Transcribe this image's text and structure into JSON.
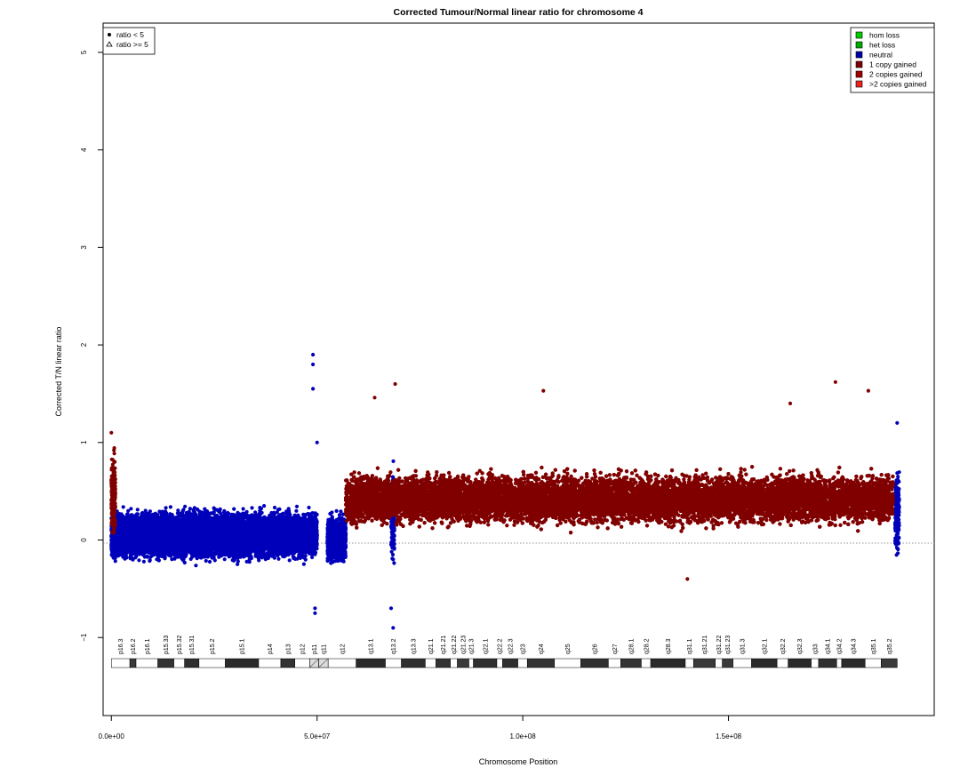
{
  "chart_data": {
    "type": "scatter",
    "title": "Corrected Tumour/Normal linear ratio for chromosome  4",
    "xlabel": "Chromosome Position",
    "ylabel": "Corrected T/N linear ratio",
    "xlim": [
      -2000000,
      200000000
    ],
    "ylim": [
      -1.8,
      5.3
    ],
    "x_ticks": [
      0,
      50000000,
      100000000,
      150000000
    ],
    "x_tick_labels": [
      "0.0e+00",
      "5.0e+07",
      "1.0e+08",
      "1.5e+08"
    ],
    "y_ticks": [
      -1,
      0,
      1,
      2,
      3,
      4,
      5
    ],
    "y_tick_labels": [
      "−1",
      "0",
      "1",
      "2",
      "3",
      "4",
      "5"
    ],
    "reference_line_y": 0,
    "shape_legend": {
      "position": "top-left",
      "entries": [
        {
          "label": "ratio < 5",
          "symbol": "filled-circle"
        },
        {
          "label": "ratio >= 5",
          "symbol": "open-triangle"
        }
      ]
    },
    "legend": {
      "position": "top-right",
      "entries": [
        {
          "label": "hom loss",
          "color": "#00cc00"
        },
        {
          "label": "het loss",
          "color": "#00aa00"
        },
        {
          "label": "neutral",
          "color": "#0000aa"
        },
        {
          "label": "1 copy gained",
          "color": "#800000"
        },
        {
          "label": "2 copies gained",
          "color": "#a00000"
        },
        {
          "label": ">2 copies gained",
          "color": "#ee2020"
        }
      ]
    },
    "series": [
      {
        "name": "neutral",
        "color": "#0000bb",
        "segments": [
          {
            "x_range": [
              0,
              50000000
            ],
            "center": 0.05,
            "spread": 0.2
          },
          {
            "x_range": [
              52500000,
              57000000
            ],
            "center": 0.02,
            "spread": 0.2
          },
          {
            "x_range": [
              68000000,
              68800000
            ],
            "center": 0.25,
            "spread": 0.4
          },
          {
            "x_range": [
              190500000,
              191500000
            ],
            "center": 0.3,
            "spread": 0.35
          }
        ],
        "notable_points": [
          [
            49000000,
            1.9
          ],
          [
            49000000,
            1.8
          ],
          [
            49000000,
            1.55
          ],
          [
            50000000,
            1.0
          ],
          [
            49500000,
            -0.7
          ],
          [
            49500000,
            -0.75
          ],
          [
            68000000,
            -0.7
          ],
          [
            68500000,
            -0.9
          ],
          [
            191000000,
            1.2
          ]
        ]
      },
      {
        "name": "1 copy gained",
        "color": "#800000",
        "segments": [
          {
            "x_range": [
              0,
              1000000
            ],
            "center": 0.45,
            "spread": 0.35
          },
          {
            "x_range": [
              57000000,
              190000000
            ],
            "center": 0.42,
            "spread": 0.22
          }
        ],
        "notable_points": [
          [
            64000000,
            1.46
          ],
          [
            69000000,
            1.6
          ],
          [
            105000000,
            1.53
          ],
          [
            165000000,
            1.4
          ],
          [
            176000000,
            1.62
          ],
          [
            184000000,
            1.53
          ],
          [
            140000000,
            -0.4
          ],
          [
            0,
            1.1
          ]
        ]
      }
    ],
    "ideogram": {
      "bands": [
        {
          "name": "p16.3",
          "start": 0,
          "end": 4500000,
          "stain": "gneg"
        },
        {
          "name": "p16.2",
          "start": 4500000,
          "end": 6000000,
          "stain": "gpos25"
        },
        {
          "name": "p16.1",
          "start": 6000000,
          "end": 11300000,
          "stain": "gneg"
        },
        {
          "name": "p15.33",
          "start": 11300000,
          "end": 15200000,
          "stain": "gpos50"
        },
        {
          "name": "p15.32",
          "start": 15200000,
          "end": 17800000,
          "stain": "gneg"
        },
        {
          "name": "p15.31",
          "start": 17800000,
          "end": 21300000,
          "stain": "gpos75"
        },
        {
          "name": "p15.2",
          "start": 21300000,
          "end": 27700000,
          "stain": "gneg"
        },
        {
          "name": "p15.1",
          "start": 27700000,
          "end": 35800000,
          "stain": "gpos100"
        },
        {
          "name": "p14",
          "start": 35800000,
          "end": 41200000,
          "stain": "gneg"
        },
        {
          "name": "p13",
          "start": 41200000,
          "end": 44600000,
          "stain": "gpos50"
        },
        {
          "name": "p12",
          "start": 44600000,
          "end": 48200000,
          "stain": "gneg"
        },
        {
          "name": "p11",
          "start": 48200000,
          "end": 50400000,
          "stain": "acen"
        },
        {
          "name": "q11",
          "start": 50400000,
          "end": 52700000,
          "stain": "acen"
        },
        {
          "name": "q12",
          "start": 52700000,
          "end": 59500000,
          "stain": "gneg"
        },
        {
          "name": "q13.1",
          "start": 59500000,
          "end": 66600000,
          "stain": "gpos100"
        },
        {
          "name": "q13.2",
          "start": 66600000,
          "end": 70500000,
          "stain": "gneg"
        },
        {
          "name": "q13.3",
          "start": 70500000,
          "end": 76300000,
          "stain": "gpos75"
        },
        {
          "name": "q21.1",
          "start": 76300000,
          "end": 78900000,
          "stain": "gneg"
        },
        {
          "name": "q21.21",
          "start": 78900000,
          "end": 82400000,
          "stain": "gpos50"
        },
        {
          "name": "q21.22",
          "start": 82400000,
          "end": 84100000,
          "stain": "gneg"
        },
        {
          "name": "q21.23",
          "start": 84100000,
          "end": 86900000,
          "stain": "gpos25"
        },
        {
          "name": "q21.3",
          "start": 86900000,
          "end": 88000000,
          "stain": "gneg"
        },
        {
          "name": "q22.1",
          "start": 88000000,
          "end": 93700000,
          "stain": "gpos75"
        },
        {
          "name": "q22.2",
          "start": 93700000,
          "end": 95100000,
          "stain": "gneg"
        },
        {
          "name": "q22.3",
          "start": 95100000,
          "end": 98800000,
          "stain": "gpos75"
        },
        {
          "name": "q23",
          "start": 98800000,
          "end": 101100000,
          "stain": "gneg"
        },
        {
          "name": "q24",
          "start": 101100000,
          "end": 107700000,
          "stain": "gpos50"
        },
        {
          "name": "q25",
          "start": 107700000,
          "end": 114100000,
          "stain": "gneg"
        },
        {
          "name": "q26",
          "start": 114100000,
          "end": 120800000,
          "stain": "gpos75"
        },
        {
          "name": "q27",
          "start": 120800000,
          "end": 123800000,
          "stain": "gneg"
        },
        {
          "name": "q28.1",
          "start": 123800000,
          "end": 128800000,
          "stain": "gpos50"
        },
        {
          "name": "q28.2",
          "start": 128800000,
          "end": 131100000,
          "stain": "gneg"
        },
        {
          "name": "q28.3",
          "start": 131100000,
          "end": 139500000,
          "stain": "gpos100"
        },
        {
          "name": "q31.1",
          "start": 139500000,
          "end": 141500000,
          "stain": "gneg"
        },
        {
          "name": "q31.21",
          "start": 141500000,
          "end": 146800000,
          "stain": "gpos25"
        },
        {
          "name": "q31.22",
          "start": 146800000,
          "end": 148500000,
          "stain": "gneg"
        },
        {
          "name": "q31.23",
          "start": 148500000,
          "end": 151100000,
          "stain": "gpos25"
        },
        {
          "name": "q31.3",
          "start": 151100000,
          "end": 155600000,
          "stain": "gneg"
        },
        {
          "name": "q32.1",
          "start": 155600000,
          "end": 161800000,
          "stain": "gpos100"
        },
        {
          "name": "q32.2",
          "start": 161800000,
          "end": 164500000,
          "stain": "gneg"
        },
        {
          "name": "q32.3",
          "start": 164500000,
          "end": 170100000,
          "stain": "gpos100"
        },
        {
          "name": "q33",
          "start": 170100000,
          "end": 171900000,
          "stain": "gneg"
        },
        {
          "name": "q34.1",
          "start": 171900000,
          "end": 176300000,
          "stain": "gpos75"
        },
        {
          "name": "q34.2",
          "start": 176300000,
          "end": 177500000,
          "stain": "gneg"
        },
        {
          "name": "q34.3",
          "start": 177500000,
          "end": 183200000,
          "stain": "gpos100"
        },
        {
          "name": "q35.1",
          "start": 183200000,
          "end": 187100000,
          "stain": "gneg"
        },
        {
          "name": "q35.2",
          "start": 187100000,
          "end": 191000000,
          "stain": "gpos25"
        }
      ]
    }
  }
}
